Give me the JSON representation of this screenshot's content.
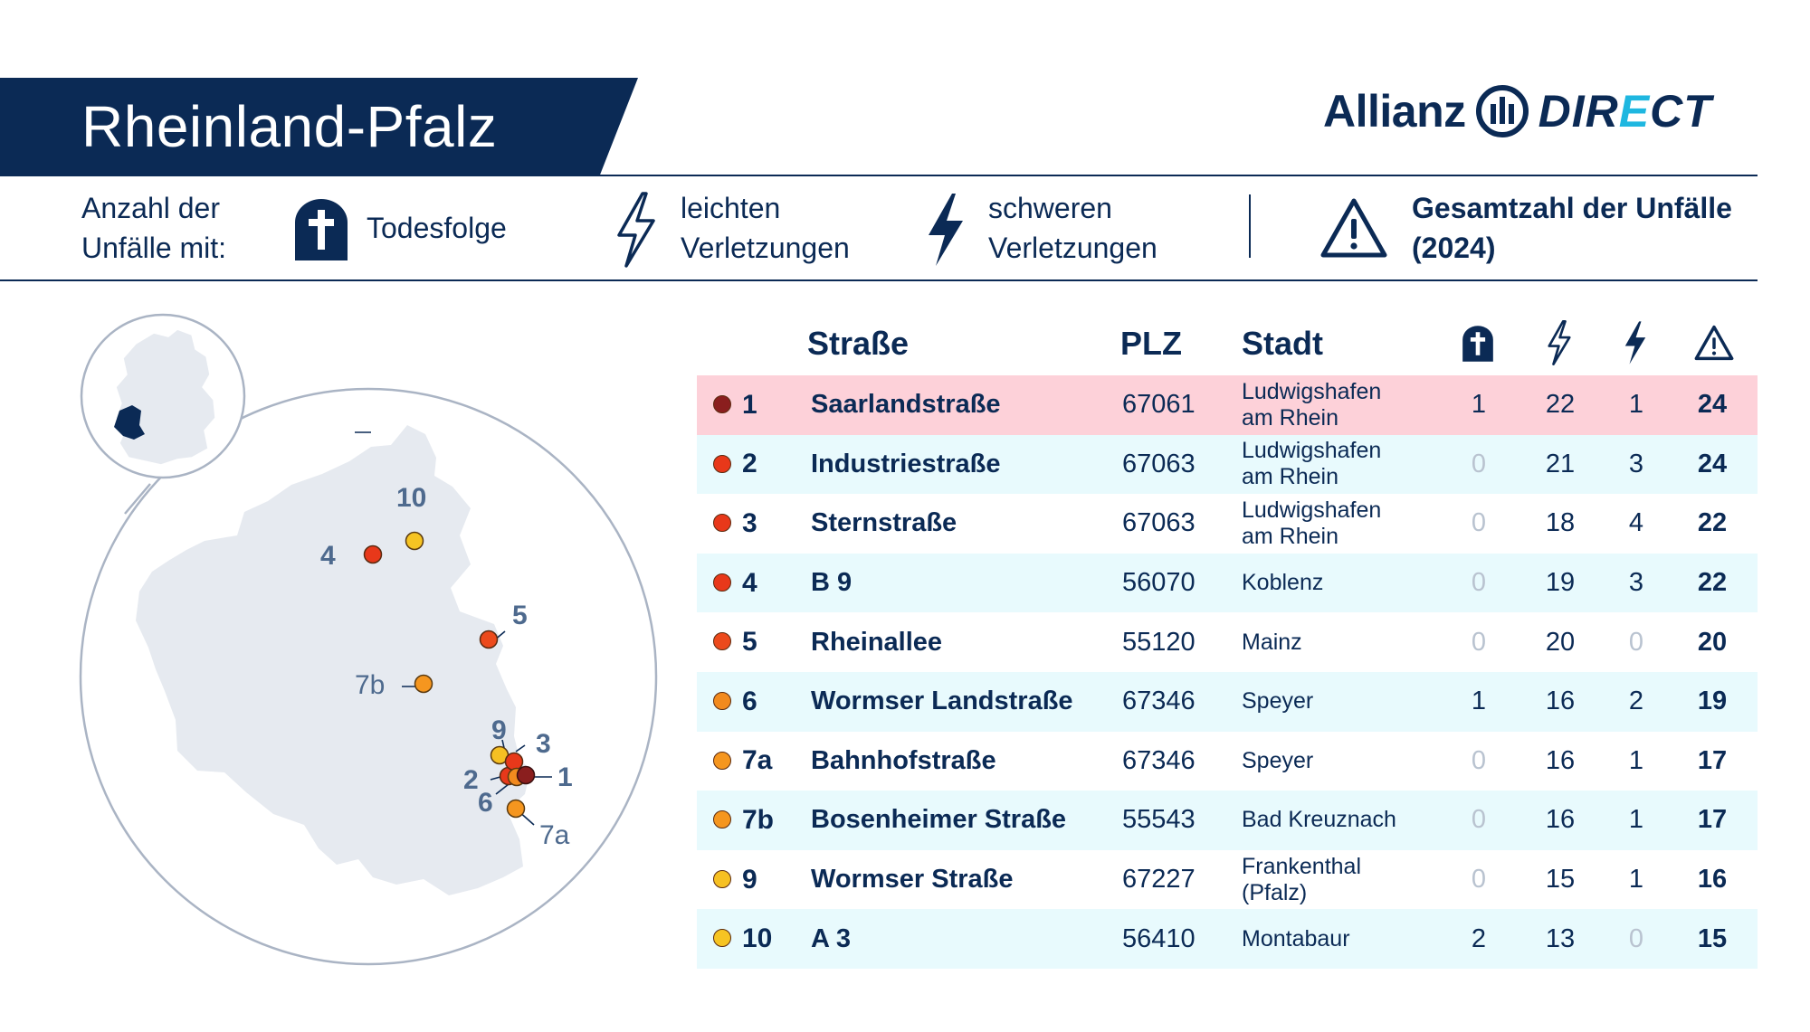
{
  "header": {
    "title": "Rheinland-Pfalz",
    "logo_left": "Allianz",
    "logo_right_a": "DIR",
    "logo_right_e": "E",
    "logo_right_b": "CT"
  },
  "legend": {
    "count_line1": "Anzahl der",
    "count_line2": "Unfälle mit:",
    "death": "Todesfolge",
    "light_line1": "leichten",
    "light_line2": "Verletzungen",
    "severe_line1": "schweren",
    "severe_line2": "Verletzungen",
    "total_line1": "Gesamtzahl der Unfälle",
    "total_line2": "(2024)"
  },
  "table": {
    "headers": {
      "street": "Straße",
      "plz": "PLZ",
      "city": "Stadt"
    },
    "rows": [
      {
        "rank": "1",
        "street": "Saarlandstraße",
        "plz": "67061",
        "city1": "Ludwigshafen",
        "city2": "am Rhein",
        "death": "1",
        "light": "22",
        "severe": "1",
        "total": "24",
        "color": "#8a1e1e"
      },
      {
        "rank": "2",
        "street": "Industriestraße",
        "plz": "67063",
        "city1": "Ludwigshafen",
        "city2": "am Rhein",
        "death": "0",
        "light": "21",
        "severe": "3",
        "total": "24",
        "color": "#e8381a"
      },
      {
        "rank": "3",
        "street": "Sternstraße",
        "plz": "67063",
        "city1": "Ludwigshafen",
        "city2": "am Rhein",
        "death": "0",
        "light": "18",
        "severe": "4",
        "total": "22",
        "color": "#e8381a"
      },
      {
        "rank": "4",
        "street": "B 9",
        "plz": "56070",
        "city1": "Koblenz",
        "city2": "",
        "death": "0",
        "light": "19",
        "severe": "3",
        "total": "22",
        "color": "#e8381a"
      },
      {
        "rank": "5",
        "street": "Rheinallee",
        "plz": "55120",
        "city1": "Mainz",
        "city2": "",
        "death": "0",
        "light": "20",
        "severe": "0",
        "total": "20",
        "color": "#ec4a1c"
      },
      {
        "rank": "6",
        "street": "Wormser Landstraße",
        "plz": "67346",
        "city1": "Speyer",
        "city2": "",
        "death": "1",
        "light": "16",
        "severe": "2",
        "total": "19",
        "color": "#f28a1e"
      },
      {
        "rank": "7a",
        "street": "Bahnhofstraße",
        "plz": "67346",
        "city1": "Speyer",
        "city2": "",
        "death": "0",
        "light": "16",
        "severe": "1",
        "total": "17",
        "color": "#f5961f"
      },
      {
        "rank": "7b",
        "street": "Bosenheimer Straße",
        "plz": "55543",
        "city1": "Bad Kreuznach",
        "city2": "",
        "death": "0",
        "light": "16",
        "severe": "1",
        "total": "17",
        "color": "#f5961f"
      },
      {
        "rank": "9",
        "street": "Wormser Straße",
        "plz": "67227",
        "city1": "Frankenthal",
        "city2": "(Pfalz)",
        "death": "0",
        "light": "15",
        "severe": "1",
        "total": "16",
        "color": "#f6c023"
      },
      {
        "rank": "10",
        "street": "A 3",
        "plz": "56410",
        "city1": "Montabaur",
        "city2": "",
        "death": "2",
        "light": "13",
        "severe": "0",
        "total": "15",
        "color": "#f6c423"
      }
    ]
  },
  "map": {
    "labels": [
      "10",
      "4",
      "5",
      "7b",
      "9",
      "3",
      "2",
      "1",
      "6",
      "7a"
    ]
  }
}
